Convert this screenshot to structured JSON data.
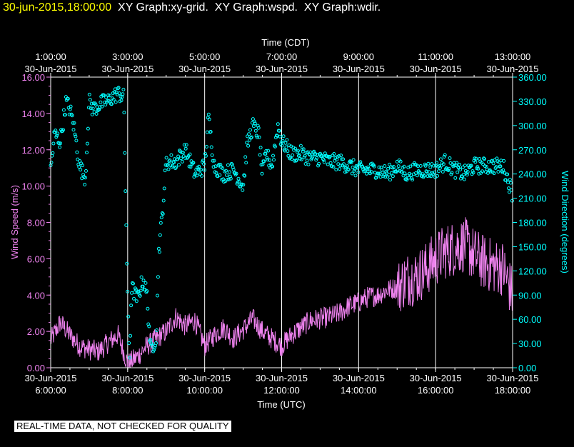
{
  "header": {
    "timestamp": "30-jun-2015,18:00:00",
    "graphs": [
      "XY Graph:xy-grid.",
      "XY Graph:wspd.",
      "XY Graph:wdir."
    ]
  },
  "disclaimer": "REAL-TIME DATA, NOT CHECKED FOR QUALITY",
  "chart_data": {
    "type": "line+scatter",
    "top_axis": {
      "title": "Time (CDT)",
      "ticks": [
        {
          "time": "1:00:00",
          "date": "30-Jun-2015"
        },
        {
          "time": "3:00:00",
          "date": "30-Jun-2015"
        },
        {
          "time": "5:00:00",
          "date": "30-Jun-2015"
        },
        {
          "time": "7:00:00",
          "date": "30-Jun-2015"
        },
        {
          "time": "9:00:00",
          "date": "30-Jun-2015"
        },
        {
          "time": "11:00:00",
          "date": "30-Jun-2015"
        },
        {
          "time": "13:00:00",
          "date": "30-Jun-2015"
        }
      ]
    },
    "bottom_axis": {
      "title": "Time (UTC)",
      "range_hours": [
        6,
        18
      ],
      "ticks": [
        {
          "hour": 6,
          "date": "30-Jun-2015",
          "time": "6:00:00"
        },
        {
          "hour": 8,
          "date": "30-Jun-2015",
          "time": "8:00:00"
        },
        {
          "hour": 10,
          "date": "30-Jun-2015",
          "time": "10:00:00"
        },
        {
          "hour": 12,
          "date": "30-Jun-2015",
          "time": "12:00:00"
        },
        {
          "hour": 14,
          "date": "30-Jun-2015",
          "time": "14:00:00"
        },
        {
          "hour": 16,
          "date": "30-Jun-2015",
          "time": "16:00:00"
        },
        {
          "hour": 18,
          "date": "30-Jun-2015",
          "time": "18:00:00"
        }
      ]
    },
    "left_axis": {
      "label": "Wind Speed (m/s)",
      "range": [
        0,
        16
      ],
      "ticks": [
        "0.00",
        "2.00",
        "4.00",
        "6.00",
        "8.00",
        "10.00",
        "12.00",
        "14.00",
        "16.00"
      ],
      "color": "#ee82ee"
    },
    "right_axis": {
      "label": "Wind Direction (degrees)",
      "range": [
        0,
        360
      ],
      "ticks": [
        "0.00",
        "30.00",
        "60.00",
        "90.00",
        "120.00",
        "150.00",
        "180.00",
        "210.00",
        "240.00",
        "270.00",
        "300.00",
        "330.00",
        "360.00"
      ],
      "color": "#00ffff"
    },
    "series": [
      {
        "name": "wspd",
        "style": "line",
        "color": "#ee82ee",
        "x": [
          6.0,
          6.25,
          6.5,
          6.75,
          7.0,
          7.25,
          7.5,
          7.75,
          8.0,
          8.25,
          8.5,
          8.75,
          9.0,
          9.25,
          9.5,
          9.75,
          10.0,
          10.25,
          10.5,
          10.75,
          11.0,
          11.25,
          11.5,
          11.75,
          12.0,
          12.25,
          12.5,
          12.75,
          13.0,
          13.25,
          13.5,
          13.75,
          14.0,
          14.25,
          14.5,
          14.75,
          15.0,
          15.25,
          15.5,
          15.75,
          16.0,
          16.25,
          16.5,
          16.75,
          17.0,
          17.25,
          17.5,
          17.75,
          18.0
        ],
        "y": [
          1.5,
          2.5,
          1.8,
          1.2,
          1.0,
          0.9,
          1.4,
          1.8,
          0.2,
          0.6,
          1.2,
          1.6,
          2.0,
          2.8,
          2.3,
          2.6,
          1.2,
          1.8,
          2.2,
          1.6,
          2.1,
          2.7,
          2.0,
          1.6,
          1.2,
          1.8,
          2.2,
          2.6,
          2.7,
          2.8,
          3.0,
          3.4,
          3.6,
          3.9,
          4.0,
          4.3,
          4.4,
          4.9,
          5.0,
          5.4,
          6.0,
          6.4,
          6.6,
          6.8,
          6.2,
          5.8,
          5.6,
          5.5,
          4.0
        ],
        "jitter_m_s": 0.6
      },
      {
        "name": "wdir",
        "style": "scatter",
        "color": "#00ffff",
        "x": [
          6.0,
          6.1,
          6.25,
          6.4,
          6.5,
          6.6,
          6.75,
          6.9,
          7.0,
          7.1,
          7.25,
          7.4,
          7.5,
          7.6,
          7.75,
          7.9,
          8.0,
          8.05,
          8.1,
          8.25,
          8.4,
          8.5,
          8.6,
          8.75,
          8.8,
          8.9,
          9.0,
          9.25,
          9.5,
          9.75,
          10.0,
          10.1,
          10.25,
          10.5,
          10.75,
          11.0,
          11.1,
          11.25,
          11.4,
          11.5,
          11.6,
          11.75,
          11.9,
          12.0,
          12.1,
          12.25,
          12.5,
          12.75,
          13.0,
          13.25,
          13.5,
          13.75,
          14.0,
          14.25,
          14.5,
          14.75,
          15.0,
          15.25,
          15.5,
          15.75,
          16.0,
          16.25,
          16.5,
          16.75,
          17.0,
          17.25,
          17.5,
          17.75,
          17.9,
          18.0
        ],
        "y": [
          245,
          290,
          280,
          330,
          320,
          300,
          250,
          235,
          330,
          320,
          325,
          330,
          330,
          335,
          340,
          335,
          80,
          10,
          100,
          85,
          110,
          90,
          20,
          40,
          140,
          190,
          255,
          255,
          270,
          240,
          250,
          310,
          250,
          240,
          245,
          225,
          275,
          300,
          290,
          240,
          265,
          250,
          300,
          280,
          275,
          265,
          265,
          260,
          260,
          255,
          255,
          250,
          245,
          245,
          245,
          240,
          250,
          240,
          245,
          245,
          245,
          255,
          245,
          240,
          250,
          250,
          250,
          250,
          230,
          215
        ],
        "jitter_deg": 10
      }
    ]
  }
}
